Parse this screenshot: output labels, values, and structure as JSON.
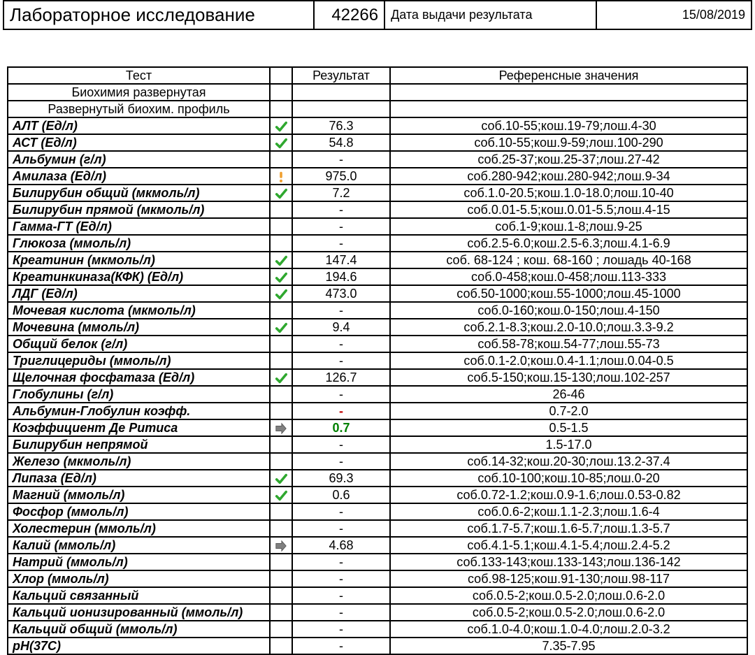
{
  "header": {
    "title": "Лабораторное исследование",
    "number": "42266",
    "date_label": "Дата выдачи результата",
    "date": "15/08/2019"
  },
  "table": {
    "columns": {
      "test": "Тест",
      "result": "Результат",
      "ref": "Референсные значения"
    },
    "icon_colors": {
      "check": "#2fa82f",
      "warn": "#f0a030",
      "arrow": "#808080",
      "stroke": "#555555"
    },
    "result_colors": {
      "red": "#c00000",
      "green": "#008000"
    },
    "rows": [
      {
        "kind": "section",
        "test": "Биохимия развернутая"
      },
      {
        "kind": "section",
        "test": "Развернутый биохим. профиль"
      },
      {
        "kind": "test",
        "test": "АЛТ (Ед/л)",
        "icon": "check",
        "result": "76.3",
        "ref": "соб.10-55;кош.19-79;лош.4-30"
      },
      {
        "kind": "test",
        "test": "АСТ (Ед/л)",
        "icon": "check",
        "result": "54.8",
        "ref": "соб.10-55;кош.9-59;лош.100-290"
      },
      {
        "kind": "test",
        "test": "Альбумин (г/л)",
        "icon": "",
        "result": "-",
        "ref": "соб.25-37;кош.25-37;лош.27-42"
      },
      {
        "kind": "test",
        "test": "Амилаза (Ед/л)",
        "icon": "warn",
        "result": "975.0",
        "ref": "соб.280-942;кош.280-942;лош.9-34"
      },
      {
        "kind": "test",
        "test": "Билирубин общий (мкмоль/л)",
        "icon": "check",
        "result": "7.2",
        "ref": "соб.1.0-20.5;кош.1.0-18.0;лош.10-40"
      },
      {
        "kind": "test",
        "test": "Билирубин прямой (мкмоль/л)",
        "icon": "",
        "result": "-",
        "ref": "соб.0.01-5.5;кош.0.01-5.5;лош.4-15"
      },
      {
        "kind": "test",
        "test": "Гамма-ГТ (Ед/л)",
        "icon": "",
        "result": "-",
        "ref": "соб.1-9;кош.1-8;лош.9-25"
      },
      {
        "kind": "test",
        "test": "Глюкоза (ммоль/л)",
        "icon": "",
        "result": "-",
        "ref": "соб.2.5-6.0;кош.2.5-6.3;лош.4.1-6.9"
      },
      {
        "kind": "test",
        "test": "Креатинин (мкмоль/л)",
        "icon": "check",
        "result": "147.4",
        "ref": "соб. 68-124 ; кош. 68-160 ; лошадь 40-168"
      },
      {
        "kind": "test",
        "test": "Креатинкиназа(КФК) (Ед/л)",
        "icon": "check",
        "result": "194.6",
        "ref": "соб.0-458;кош.0-458;лош.113-333"
      },
      {
        "kind": "test",
        "test": "ЛДГ (Ед/л)",
        "icon": "check",
        "result": "473.0",
        "ref": "соб.50-1000;кош.55-1000;лош.45-1000"
      },
      {
        "kind": "test",
        "test": "Мочевая кислота (мкмоль/л)",
        "icon": "",
        "result": "-",
        "ref": "соб.0-160;кош.0-150;лош.4-150"
      },
      {
        "kind": "test",
        "test": "Мочевина (ммоль/л)",
        "icon": "check",
        "result": "9.4",
        "ref": "соб.2.1-8.3;кош.2.0-10.0;лош.3.3-9.2"
      },
      {
        "kind": "test",
        "test": "Общий белок (г/л)",
        "icon": "",
        "result": "-",
        "ref": "соб.58-78;кош.54-77;лош.55-73"
      },
      {
        "kind": "test",
        "test": "Триглицериды (ммоль/л)",
        "icon": "",
        "result": "-",
        "ref": "соб.0.1-2.0;кош.0.4-1.1;лош.0.04-0.5"
      },
      {
        "kind": "test",
        "test": "Щелочная фосфатаза (Ед/л)",
        "icon": "check",
        "result": "126.7",
        "ref": "соб.5-150;кош.15-130;лош.102-257"
      },
      {
        "kind": "test",
        "test": "Глобулины (г/л)",
        "icon": "",
        "result": "-",
        "ref": "26-46"
      },
      {
        "kind": "test",
        "test": "Альбумин-Глобулин коэфф.",
        "icon": "",
        "result": "-",
        "result_style": "red",
        "ref": "0.7-2.0"
      },
      {
        "kind": "test",
        "test": "Коэффициент Де Ритиса",
        "icon": "arrow",
        "result": "0.7",
        "result_style": "green",
        "ref": "0.5-1.5"
      },
      {
        "kind": "test",
        "test": "Билирубин непрямой",
        "icon": "",
        "result": "-",
        "ref": "1.5-17.0"
      },
      {
        "kind": "test",
        "test": "Железо (мкмоль/л)",
        "icon": "",
        "result": "-",
        "ref": "соб.14-32;кош.20-30;лош.13.2-37.4"
      },
      {
        "kind": "test",
        "test": "Липаза (Ед/л)",
        "icon": "check",
        "result": "69.3",
        "ref": "соб.10-100;кош.10-85;лош.0-20"
      },
      {
        "kind": "test",
        "test": "Магний (ммоль/л)",
        "icon": "check",
        "result": "0.6",
        "ref": "соб.0.72-1.2;кош.0.9-1.6;лош.0.53-0.82"
      },
      {
        "kind": "test",
        "test": "Фосфор (ммоль/л)",
        "icon": "",
        "result": "-",
        "ref": "соб.0.6-2;кош.1.1-2.3;лош.1.6-4"
      },
      {
        "kind": "test",
        "test": "Холестерин (ммоль/л)",
        "icon": "",
        "result": "-",
        "ref": "соб.1.7-5.7;кош.1.6-5.7;лош.1.3-5.7"
      },
      {
        "kind": "test",
        "test": "Калий (ммоль/л)",
        "icon": "arrow",
        "result": "4.68",
        "ref": "соб.4.1-5.1;кош.4.1-5.4;лош.2.4-5.2"
      },
      {
        "kind": "test",
        "test": "Натрий (ммоль/л)",
        "icon": "",
        "result": "-",
        "ref": "соб.133-143;кош.133-143;лош.136-142"
      },
      {
        "kind": "test",
        "test": "Хлор (ммоль/л)",
        "icon": "",
        "result": "-",
        "ref": "соб.98-125;кош.91-130;лош.98-117"
      },
      {
        "kind": "test",
        "test": "Кальций связанный",
        "icon": "",
        "result": "-",
        "ref": "соб.0.5-2;кош.0.5-2.0;лош.0.6-2.0"
      },
      {
        "kind": "test",
        "test": "Кальций ионизированный (ммоль/л)",
        "icon": "",
        "result": "-",
        "ref": "соб.0.5-2;кош.0.5-2.0;лош.0.6-2.0"
      },
      {
        "kind": "test",
        "test": "Кальций общий (ммоль/л)",
        "icon": "",
        "result": "-",
        "ref": "соб.1.0-4.0;кош.1.0-4.0;лош.2.0-3.2"
      },
      {
        "kind": "test",
        "test": "pH(37C)",
        "icon": "",
        "result": "-",
        "ref": "7.35-7.95"
      }
    ]
  }
}
